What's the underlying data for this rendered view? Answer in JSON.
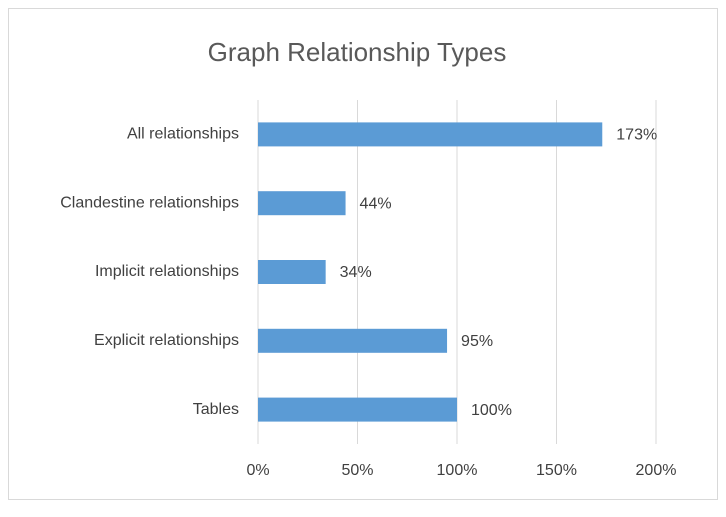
{
  "chart_data": {
    "type": "bar",
    "orientation": "horizontal",
    "title": "Graph Relationship Types",
    "categories": [
      "Tables",
      "Explicit relationships",
      "Implicit relationships",
      "Clandestine relationships",
      "All relationships"
    ],
    "values": [
      100,
      95,
      34,
      44,
      173
    ],
    "value_labels": [
      "100%",
      "95%",
      "34%",
      "44%",
      "173%"
    ],
    "color": "#5b9bd5",
    "xlim": [
      0,
      200
    ],
    "xticks": [
      {
        "value": 0,
        "label": "0%"
      },
      {
        "value": 50,
        "label": "50%"
      },
      {
        "value": 100,
        "label": "100%"
      },
      {
        "value": 150,
        "label": "150%"
      },
      {
        "value": 200,
        "label": "200%"
      }
    ],
    "grid": true
  }
}
